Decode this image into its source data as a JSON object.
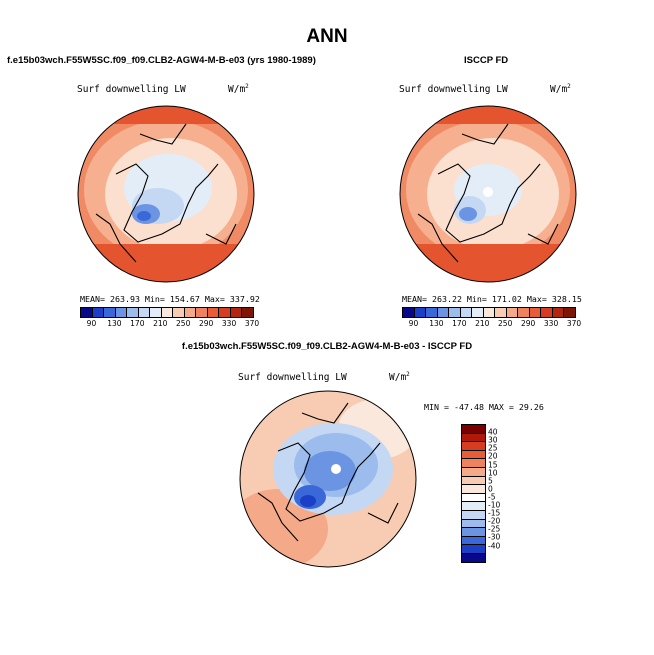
{
  "title": "ANN",
  "panels": [
    {
      "case": "f.e15b03wch.F55W5SC.f09_f09.CLB2-AGW4-M-B-e03 (yrs 1980-1989)",
      "variable": "Surf downwelling LW",
      "units_base": "W/m",
      "units_exp": "2",
      "stats": "MEAN= 263.93  Min= 154.67  Max= 337.92"
    },
    {
      "case": "ISCCP FD",
      "variable": "Surf downwelling LW",
      "units_base": "W/m",
      "units_exp": "2",
      "stats": "MEAN= 263.22  Min= 171.02  Max= 328.15"
    },
    {
      "case": "f.e15b03wch.F55W5SC.f09_f09.CLB2-AGW4-M-B-e03 - ISCCP FD",
      "variable": "Surf downwelling LW",
      "units_base": "W/m",
      "units_exp": "2",
      "stats": "MIN = -47.48 MAX =  29.26"
    }
  ],
  "colorbar_abs": {
    "ticks": [
      "90",
      "130",
      "170",
      "210",
      "250",
      "290",
      "330",
      "370"
    ],
    "colors": [
      "#08088a",
      "#1c3fc7",
      "#3a68d8",
      "#6b95e3",
      "#9bbcec",
      "#c4d8f3",
      "#e3edf8",
      "#fbe8dc",
      "#f8ccb2",
      "#f4a988",
      "#ee825f",
      "#e85c3a",
      "#d63c22",
      "#b22510",
      "#7e1505"
    ]
  },
  "colorbar_diff": {
    "ticks": [
      "40",
      "30",
      "25",
      "20",
      "15",
      "10",
      "5",
      "0",
      "-5",
      "-10",
      "-15",
      "-20",
      "-25",
      "-30",
      "-40"
    ],
    "colors": [
      "#7a0000",
      "#b01808",
      "#d63c22",
      "#e85c3a",
      "#ee825f",
      "#f4a988",
      "#f8ccb2",
      "#fbe8dc",
      "#ffffff",
      "#e3edf8",
      "#c4d8f3",
      "#9bbcec",
      "#6b95e3",
      "#3a68d8",
      "#1c3fc7",
      "#08088a"
    ]
  }
}
